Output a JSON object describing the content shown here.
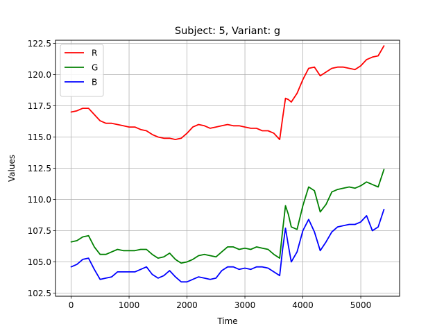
{
  "chart_data": {
    "type": "line",
    "title": "Subject: 5, Variant: g",
    "xlabel": "Time",
    "ylabel": "Values",
    "xlim": [
      -270,
      5670
    ],
    "ylim": [
      102.25,
      122.75
    ],
    "xticks": [
      0,
      1000,
      2000,
      3000,
      4000,
      5000
    ],
    "xtick_labels": [
      "0",
      "1000",
      "2000",
      "3000",
      "4000",
      "5000"
    ],
    "yticks": [
      102.5,
      105.0,
      107.5,
      110.0,
      112.5,
      115.0,
      117.5,
      120.0,
      122.5
    ],
    "ytick_labels": [
      "102.5",
      "105.0",
      "107.5",
      "110.0",
      "112.5",
      "115.0",
      "117.5",
      "120.0",
      "122.5"
    ],
    "grid": true,
    "legend_position": "top-left",
    "x": [
      0,
      100,
      200,
      300,
      400,
      500,
      600,
      700,
      800,
      900,
      1000,
      1100,
      1200,
      1300,
      1400,
      1500,
      1600,
      1700,
      1800,
      1900,
      2000,
      2100,
      2200,
      2300,
      2400,
      2500,
      2600,
      2700,
      2800,
      2900,
      3000,
      3100,
      3200,
      3300,
      3400,
      3500,
      3600,
      3650,
      3700,
      3750,
      3800,
      3900,
      4000,
      4100,
      4200,
      4300,
      4400,
      4500,
      4600,
      4700,
      4800,
      4900,
      5000,
      5100,
      5200,
      5300,
      5400
    ],
    "series": [
      {
        "name": "R",
        "color": "#ff0000",
        "values": [
          117.0,
          117.1,
          117.3,
          117.3,
          116.8,
          116.3,
          116.1,
          116.1,
          116.0,
          115.9,
          115.8,
          115.8,
          115.6,
          115.5,
          115.2,
          115.0,
          114.9,
          114.9,
          114.8,
          114.9,
          115.3,
          115.8,
          116.0,
          115.9,
          115.7,
          115.8,
          115.9,
          116.0,
          115.9,
          115.9,
          115.8,
          115.7,
          115.7,
          115.5,
          115.5,
          115.3,
          114.8,
          116.5,
          118.1,
          118.0,
          117.8,
          118.5,
          119.6,
          120.5,
          120.6,
          119.9,
          120.2,
          120.5,
          120.6,
          120.6,
          120.5,
          120.4,
          120.7,
          121.2,
          121.4,
          121.5,
          122.3
        ]
      },
      {
        "name": "G",
        "color": "#008000",
        "values": [
          106.6,
          106.7,
          107.0,
          107.1,
          106.2,
          105.6,
          105.6,
          105.8,
          106.0,
          105.9,
          105.9,
          105.9,
          106.0,
          106.0,
          105.6,
          105.3,
          105.4,
          105.7,
          105.2,
          104.9,
          105.0,
          105.2,
          105.5,
          105.6,
          105.5,
          105.4,
          105.8,
          106.2,
          106.2,
          106.0,
          106.1,
          106.0,
          106.2,
          106.1,
          106.0,
          105.6,
          105.3,
          107.5,
          109.5,
          108.8,
          107.8,
          107.6,
          109.5,
          111.0,
          110.7,
          109.0,
          109.6,
          110.6,
          110.8,
          110.9,
          111.0,
          110.9,
          111.1,
          111.4,
          111.2,
          111.0,
          112.4
        ]
      },
      {
        "name": "B",
        "color": "#0000ff",
        "values": [
          104.6,
          104.8,
          105.2,
          105.3,
          104.4,
          103.6,
          103.7,
          103.8,
          104.2,
          104.2,
          104.2,
          104.2,
          104.4,
          104.6,
          104.0,
          103.7,
          103.9,
          104.3,
          103.8,
          103.4,
          103.4,
          103.6,
          103.8,
          103.7,
          103.6,
          103.7,
          104.3,
          104.6,
          104.6,
          104.4,
          104.5,
          104.4,
          104.6,
          104.6,
          104.5,
          104.2,
          103.9,
          106.0,
          107.7,
          106.3,
          105.0,
          105.8,
          107.5,
          108.4,
          107.4,
          105.9,
          106.6,
          107.4,
          107.8,
          107.9,
          108.0,
          108.0,
          108.2,
          108.7,
          107.5,
          107.8,
          109.2
        ]
      }
    ]
  }
}
